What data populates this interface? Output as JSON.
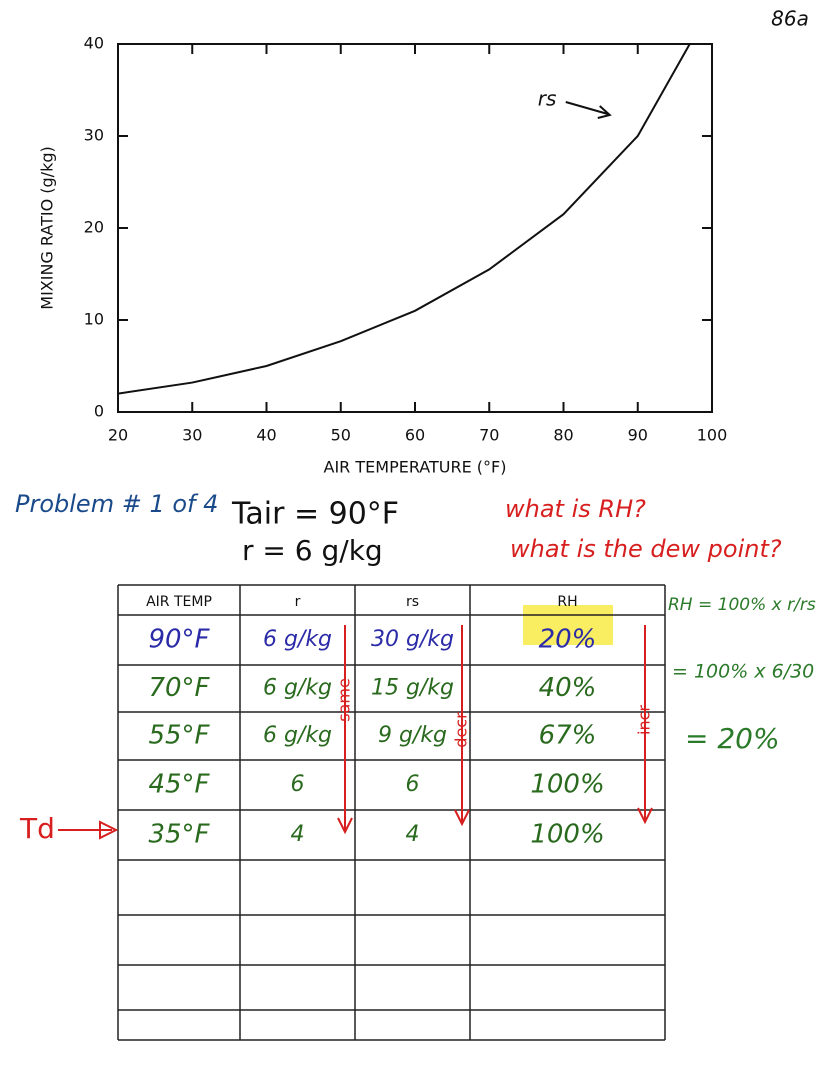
{
  "page_number": "86a",
  "chart_data": {
    "type": "line",
    "xlabel": "AIR TEMPERATURE (°F)",
    "ylabel": "MIXING RATIO (g/kg)",
    "x": [
      20,
      30,
      40,
      50,
      60,
      70,
      80,
      90,
      97
    ],
    "series": [
      {
        "name": "rs",
        "color": "#111111",
        "values": [
          2,
          3.2,
          5,
          7.7,
          11,
          15.5,
          21.5,
          30,
          40
        ]
      }
    ],
    "xlim": [
      20,
      100
    ],
    "ylim": [
      0,
      40
    ],
    "xticks": [
      20,
      30,
      40,
      50,
      60,
      70,
      80,
      90,
      100
    ],
    "yticks": [
      0,
      10,
      20,
      30,
      40
    ]
  },
  "problem": {
    "title": "Problem # 1 of 4",
    "given": [
      "Tair = 90°F",
      "r = 6 g/kg"
    ],
    "questions": [
      "what is RH?",
      "what is the dew point?"
    ],
    "work": [
      "RH = 100% x r/rs",
      "= 100% x 6/30",
      "= 20%"
    ]
  },
  "table": {
    "headers": [
      "AIR TEMP",
      "r",
      "rs",
      "RH"
    ],
    "rows": [
      [
        "90°F",
        "6 g/kg",
        "30 g/kg",
        "20%"
      ],
      [
        "70°F",
        "6 g/kg",
        "15 g/kg",
        "40%"
      ],
      [
        "55°F",
        "6 g/kg",
        "9 g/kg",
        "67%"
      ],
      [
        "45°F",
        "6",
        "6",
        "100%"
      ],
      [
        "35°F",
        "4",
        "4",
        "100%"
      ]
    ],
    "trends": [
      "same",
      "decr",
      "incr"
    ],
    "marker": "Td"
  }
}
